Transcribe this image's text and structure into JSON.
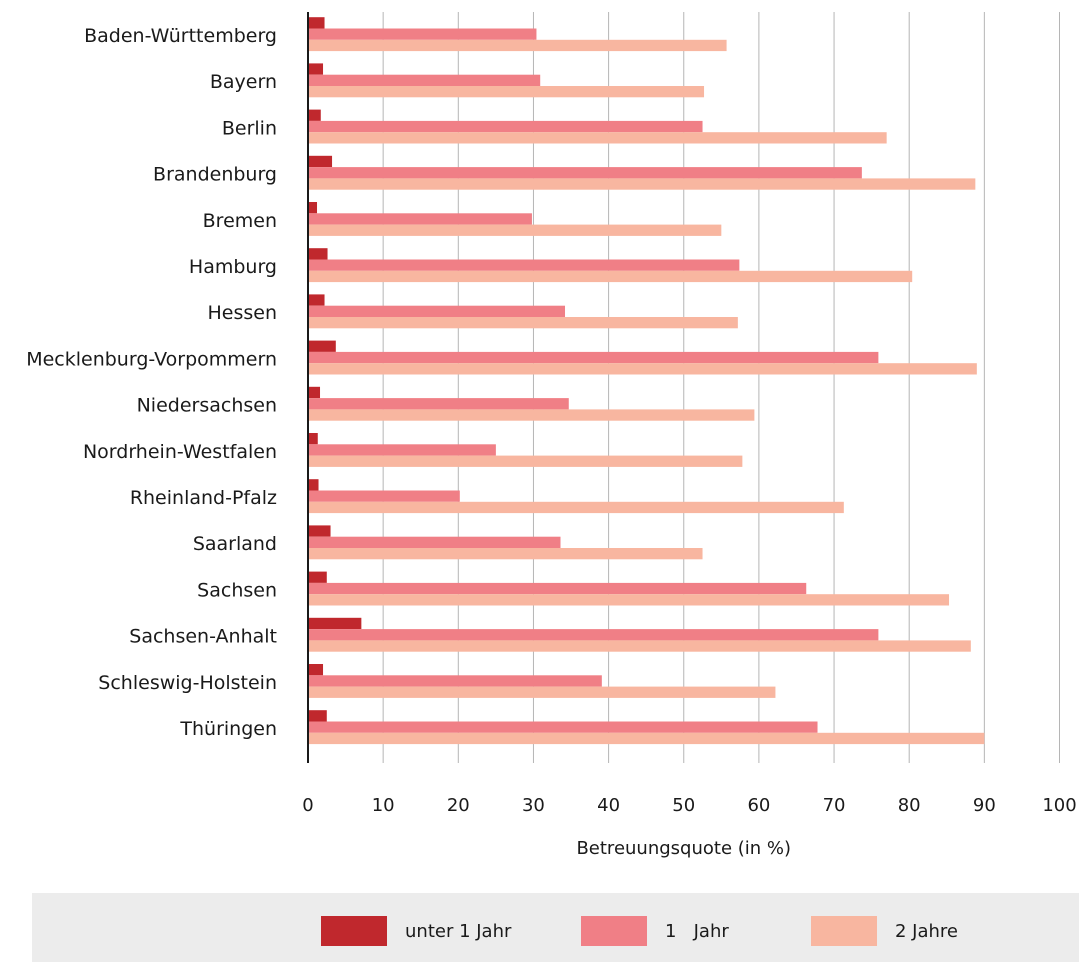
{
  "chart_data": {
    "type": "bar",
    "orientation": "horizontal",
    "categories": [
      "Baden-Württemberg",
      "Bayern",
      "Berlin",
      "Brandenburg",
      "Bremen",
      "Hamburg",
      "Hessen",
      "Mecklenburg-Vorpommern",
      "Niedersachsen",
      "Nordrhein-Westfalen",
      "Rheinland-Pfalz",
      "Saarland",
      "Sachsen",
      "Sachsen-Anhalt",
      "Schleswig-Holstein",
      "Thüringen"
    ],
    "series": [
      {
        "name": "unter 1 Jahr",
        "color": "#c0282d",
        "values": [
          2.2,
          2.0,
          1.7,
          3.2,
          1.2,
          2.6,
          2.2,
          3.7,
          1.6,
          1.3,
          1.4,
          3.0,
          2.5,
          7.1,
          2.0,
          2.5
        ]
      },
      {
        "name": "1   Jahr",
        "color": "#f07f86",
        "values": [
          30.4,
          30.9,
          52.5,
          73.7,
          29.8,
          57.4,
          34.2,
          75.9,
          34.7,
          25.0,
          20.2,
          33.6,
          66.3,
          75.9,
          39.1,
          67.8
        ]
      },
      {
        "name": "2 Jahre",
        "color": "#f8b6a0",
        "values": [
          55.7,
          52.7,
          77.0,
          88.8,
          55.0,
          80.4,
          57.2,
          89.0,
          59.4,
          57.8,
          71.3,
          52.5,
          85.3,
          88.2,
          62.2,
          90.0
        ]
      }
    ],
    "xlabel": "Betreuungsquote (in %)",
    "ylabel": "",
    "xlim": [
      0,
      100
    ],
    "ticks": [
      "0",
      "10",
      "20",
      "30",
      "40",
      "50",
      "60",
      "70",
      "80",
      "90",
      "100"
    ],
    "grid": true,
    "legend_position": "bottom"
  }
}
